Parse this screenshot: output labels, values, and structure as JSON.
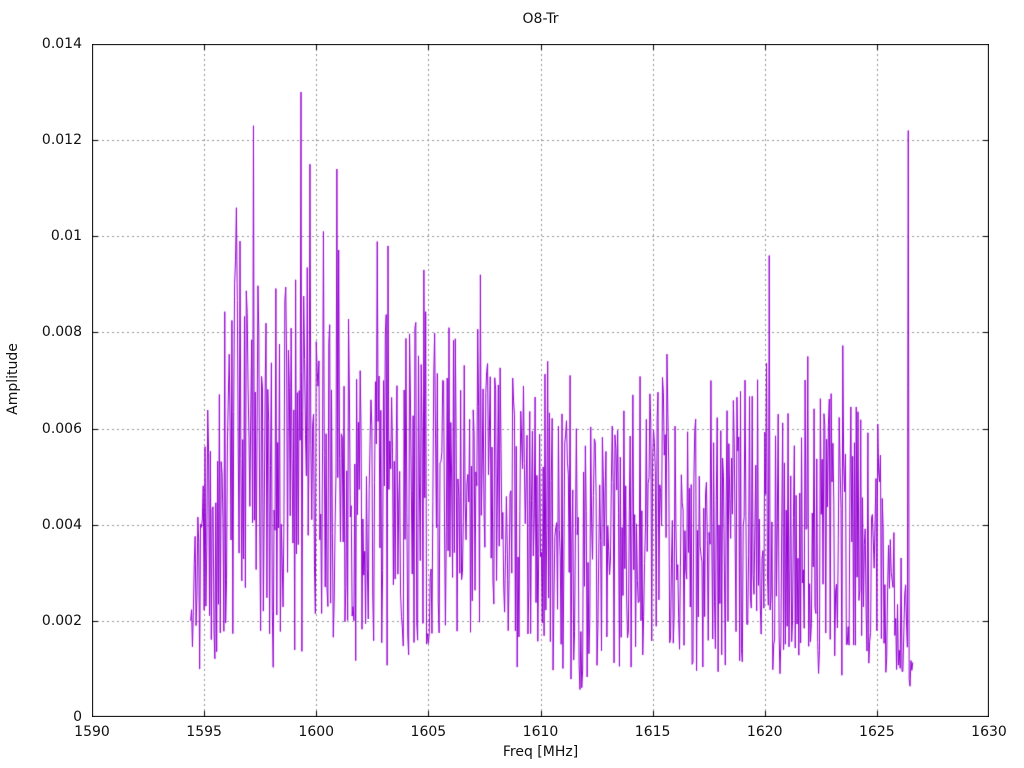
{
  "chart_data": {
    "type": "line",
    "title": "O8-Tr",
    "xlabel": "Freq [MHz]",
    "ylabel": "Amplitude",
    "xlim": [
      1590,
      1630
    ],
    "ylim": [
      0,
      0.014
    ],
    "xticks": [
      1590,
      1595,
      1600,
      1605,
      1610,
      1615,
      1620,
      1625,
      1630
    ],
    "yticks": [
      0,
      0.002,
      0.004,
      0.006,
      0.008,
      0.01,
      0.012,
      0.014
    ],
    "ytick_labels": [
      "0",
      "0.002",
      "0.004",
      "0.006",
      "0.008",
      "0.01",
      "0.012",
      "0.014"
    ],
    "grid": true,
    "legend": "none",
    "line_color": "#9400d3",
    "grid_color": "#949494",
    "axis_color": "#000000",
    "background_color": "#ffffff",
    "series_description": "dense noisy amplitude spectrum trace",
    "x_start": 1594.4,
    "x_end": 1626.6,
    "x_step": 0.04,
    "seed": 1597,
    "envelope": [
      [
        1594.4,
        0.0003,
        0.003
      ],
      [
        1595.0,
        0.0005,
        0.0062
      ],
      [
        1595.6,
        0.0008,
        0.0085
      ],
      [
        1596.4,
        0.0008,
        0.0099
      ],
      [
        1597.2,
        0.0008,
        0.0095
      ],
      [
        1598.2,
        0.0008,
        0.0082
      ],
      [
        1599.2,
        0.001,
        0.0105
      ],
      [
        1600.2,
        0.0012,
        0.0101
      ],
      [
        1601.0,
        0.001,
        0.009
      ],
      [
        1602.0,
        0.0012,
        0.0086
      ],
      [
        1603.0,
        0.001,
        0.0088
      ],
      [
        1604.0,
        0.001,
        0.008
      ],
      [
        1605.0,
        0.0012,
        0.0086
      ],
      [
        1606.0,
        0.001,
        0.0081
      ],
      [
        1607.0,
        0.0012,
        0.0077
      ],
      [
        1608.0,
        0.0012,
        0.0075
      ],
      [
        1609.0,
        0.001,
        0.0068
      ],
      [
        1610.0,
        0.001,
        0.0074
      ],
      [
        1611.0,
        0.0006,
        0.0062
      ],
      [
        1612.0,
        0.0005,
        0.006
      ],
      [
        1613.0,
        0.0008,
        0.0063
      ],
      [
        1614.0,
        0.001,
        0.0066
      ],
      [
        1615.0,
        0.001,
        0.007
      ],
      [
        1616.0,
        0.0008,
        0.0068
      ],
      [
        1617.0,
        0.0005,
        0.0062
      ],
      [
        1618.0,
        0.0008,
        0.0068
      ],
      [
        1619.0,
        0.001,
        0.0072
      ],
      [
        1620.0,
        0.001,
        0.007
      ],
      [
        1621.0,
        0.0008,
        0.0066
      ],
      [
        1622.0,
        0.0008,
        0.0072
      ],
      [
        1623.0,
        0.0008,
        0.0068
      ],
      [
        1624.0,
        0.0008,
        0.0066
      ],
      [
        1625.0,
        0.0008,
        0.006
      ],
      [
        1625.8,
        0.0008,
        0.0042
      ],
      [
        1626.3,
        0.0005,
        0.003
      ],
      [
        1626.6,
        0.0004,
        0.0012
      ]
    ],
    "peaks": [
      [
        1596.6,
        0.0099
      ],
      [
        1597.2,
        0.0123
      ],
      [
        1599.3,
        0.013
      ],
      [
        1599.7,
        0.0115
      ],
      [
        1600.3,
        0.0101
      ],
      [
        1600.9,
        0.0114
      ],
      [
        1603.2,
        0.0098
      ],
      [
        1604.8,
        0.0093
      ],
      [
        1605.9,
        0.0081
      ],
      [
        1607.3,
        0.0092
      ],
      [
        1610.3,
        0.0074
      ],
      [
        1617.6,
        0.007
      ],
      [
        1620.2,
        0.0096
      ],
      [
        1621.9,
        0.0075
      ],
      [
        1626.4,
        0.0122
      ]
    ]
  }
}
